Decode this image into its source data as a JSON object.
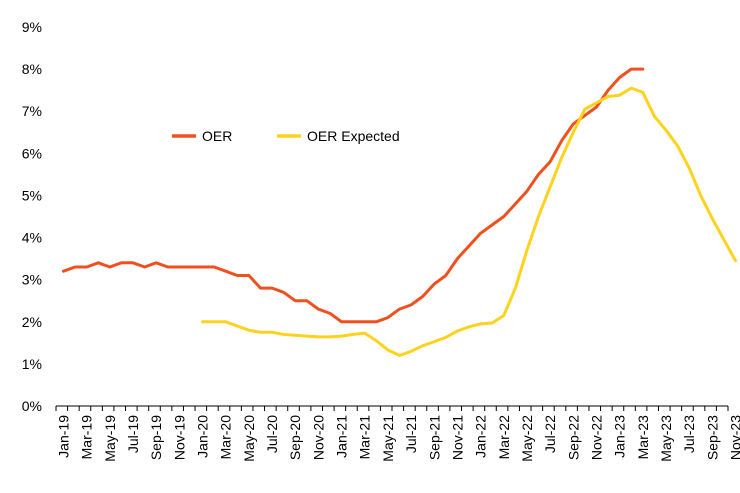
{
  "chart_data": {
    "type": "line",
    "title": "",
    "xlabel": "",
    "ylabel": "",
    "ylim": [
      0,
      9
    ],
    "y_ticks": [
      "0%",
      "1%",
      "2%",
      "3%",
      "4%",
      "5%",
      "6%",
      "7%",
      "8%",
      "9%"
    ],
    "x_tick_labels": [
      "Jan-19",
      "Mar-19",
      "May-19",
      "Jul-19",
      "Sep-19",
      "Nov-19",
      "Jan-20",
      "Mar-20",
      "May-20",
      "Jul-20",
      "Sep-20",
      "Nov-20",
      "Jan-21",
      "Mar-21",
      "May-21",
      "Jul-21",
      "Sep-21",
      "Nov-21",
      "Jan-22",
      "Mar-22",
      "May-22",
      "Jul-22",
      "Sep-22",
      "Nov-22",
      "Jan-23",
      "Mar-23",
      "May-23",
      "Jul-23",
      "Sep-23",
      "Nov-23"
    ],
    "legend_position": "upper-left",
    "series": [
      {
        "name": "OER",
        "color": "#F0501E",
        "start_index": 0,
        "values": [
          3.2,
          3.3,
          3.3,
          3.4,
          3.3,
          3.4,
          3.4,
          3.3,
          3.4,
          3.3,
          3.3,
          3.3,
          3.3,
          3.3,
          3.2,
          3.1,
          3.1,
          2.8,
          2.8,
          2.7,
          2.5,
          2.5,
          2.3,
          2.2,
          2.0,
          2.0,
          2.0,
          2.0,
          2.1,
          2.3,
          2.4,
          2.6,
          2.9,
          3.1,
          3.5,
          3.8,
          4.1,
          4.3,
          4.5,
          4.8,
          5.1,
          5.5,
          5.8,
          6.3,
          6.7,
          6.9,
          7.1,
          7.5,
          7.8,
          8.0,
          8.0
        ]
      },
      {
        "name": "OER Expected",
        "color": "#FFD21E",
        "start_index": 12,
        "values": [
          2.0,
          2.0,
          2.0,
          1.9,
          1.8,
          1.75,
          1.75,
          1.7,
          1.68,
          1.66,
          1.64,
          1.64,
          1.66,
          1.7,
          1.73,
          1.55,
          1.33,
          1.2,
          1.3,
          1.43,
          1.53,
          1.63,
          1.78,
          1.88,
          1.95,
          1.97,
          2.15,
          2.8,
          3.7,
          4.5,
          5.2,
          5.9,
          6.5,
          7.05,
          7.2,
          7.35,
          7.38,
          7.55,
          7.45,
          6.88,
          6.55,
          6.18,
          5.65,
          5.0,
          4.45,
          3.95,
          3.45
        ]
      }
    ]
  }
}
